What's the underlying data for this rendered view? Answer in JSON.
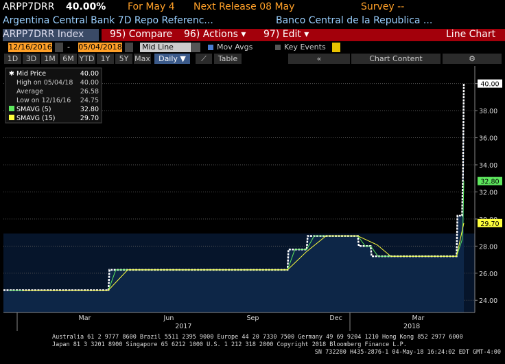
{
  "header": {
    "ticker": "ARPP7DRR",
    "value": "40.00%",
    "for_date": "For May 4",
    "next_release": "Next Release 08 May",
    "survey": "Survey --",
    "description": "Argentina Central Bank 7D Repo Referenc...",
    "issuer": "Banco Central de la Republica ..."
  },
  "toolbar": {
    "security": "ARPP7DRR Index",
    "compare": "95) Compare",
    "actions": "96) Actions ▾",
    "edit": "97) Edit ▾",
    "view": "Line Chart",
    "start_date": "12/16/2016",
    "dash": "-",
    "end_date": "05/04/2018",
    "mode": "Mid Line",
    "mov_avgs": "Mov Avgs",
    "key_events": "Key Events",
    "ranges": [
      "1D",
      "3D",
      "1M",
      "6M",
      "YTD",
      "1Y",
      "5Y",
      "Max"
    ],
    "frequency": "Daily ▼",
    "table": "Table",
    "collapse": "«",
    "chart_content": "Chart Content",
    "settings": "⚙"
  },
  "legend": {
    "mid_value": "40.00",
    "high_label": "High on 05/04/18",
    "high_value": "40.00",
    "average_label": "Average",
    "average_value": "26.58",
    "low_label": "Low on 12/16/16",
    "low_value": "24.75",
    "sma5_value": "32.80",
    "sma15_value": "29.70"
  },
  "chart_data": {
    "type": "line",
    "xlim": [
      "2016-12-16",
      "2018-05-16"
    ],
    "ylim": [
      23.1,
      41.3
    ],
    "yticks": [
      {
        "value": 24,
        "label": "24.00"
      },
      {
        "value": 26,
        "label": "26.00"
      },
      {
        "value": 28,
        "label": "28.00"
      },
      {
        "value": 30,
        "label": "30.00"
      },
      {
        "value": 32,
        "label": "32.00"
      },
      {
        "value": 34,
        "label": "34.00"
      },
      {
        "value": 36,
        "label": "36.00"
      },
      {
        "value": 38,
        "label": "38.00"
      },
      {
        "value": 40,
        "label": "40.00"
      }
    ],
    "xticks": [
      {
        "value": "2017-03-15",
        "label": "Mar"
      },
      {
        "value": "2017-06-15",
        "label": "Jun"
      },
      {
        "value": "2017-09-15",
        "label": "Sep"
      },
      {
        "value": "2017-12-15",
        "label": "Dec"
      },
      {
        "value": "2018-03-15",
        "label": "Mar"
      }
    ],
    "year_ticks": [
      {
        "value": "2017-07-01",
        "label": "2017"
      },
      {
        "value": "2018-03-08",
        "label": "2018"
      }
    ],
    "grid": true,
    "series": [
      {
        "name": "Mid Price",
        "color": "#ffffff",
        "area_color": "#0d2647",
        "end_label": "40.00",
        "x": [
          "2016-12-16",
          "2017-04-10",
          "2017-04-11",
          "2017-10-23",
          "2017-10-24",
          "2017-11-13",
          "2017-11-14",
          "2018-01-08",
          "2018-01-09",
          "2018-01-22",
          "2018-01-23",
          "2018-04-26",
          "2018-04-27",
          "2018-05-02",
          "2018-05-03",
          "2018-05-04"
        ],
        "values": [
          24.75,
          24.75,
          26.25,
          26.25,
          27.75,
          27.75,
          28.75,
          28.75,
          28,
          28,
          27.25,
          27.25,
          30.25,
          30.25,
          33.25,
          40
        ]
      },
      {
        "name": "SMAVG (5)",
        "color": "#5ee85e",
        "end_label": "32.80",
        "x": [
          "2016-12-22",
          "2017-04-10",
          "2017-04-18",
          "2017-10-23",
          "2017-10-31",
          "2017-11-13",
          "2017-11-21",
          "2018-01-08",
          "2018-01-16",
          "2018-01-22",
          "2018-01-30",
          "2018-04-26",
          "2018-05-02",
          "2018-05-03",
          "2018-05-04"
        ],
        "values": [
          24.75,
          24.75,
          26.25,
          26.25,
          27.75,
          27.75,
          28.75,
          28.75,
          28,
          28,
          27.25,
          27.25,
          28.45,
          29.65,
          32.8
        ]
      },
      {
        "name": "SMAVG (15)",
        "color": "#ffff3c",
        "end_label": "29.70",
        "x": [
          "2017-01-06",
          "2017-04-10",
          "2017-05-01",
          "2017-10-23",
          "2017-11-13",
          "2017-12-04",
          "2018-01-08",
          "2018-01-29",
          "2018-02-13",
          "2018-04-26",
          "2018-05-04"
        ],
        "values": [
          24.75,
          24.75,
          26.25,
          26.25,
          27.6,
          28.75,
          28.75,
          28.1,
          27.25,
          27.25,
          29.7
        ]
      }
    ]
  },
  "footer": {
    "line1": "Australia 61 2 9777 8600 Brazil 5511 2395 9000 Europe 44 20 7330 7500 Germany 49 69 9204 1210 Hong Kong 852 2977 6000",
    "line2": "Japan 81 3 3201 8900        Singapore 65 6212 1000        U.S. 1 212 318 2000        Copyright 2018 Bloomberg Finance L.P.",
    "line3": "SN 732280 H435-2876-1 04-May-18 16:24:02 EDT  GMT-4:00"
  }
}
